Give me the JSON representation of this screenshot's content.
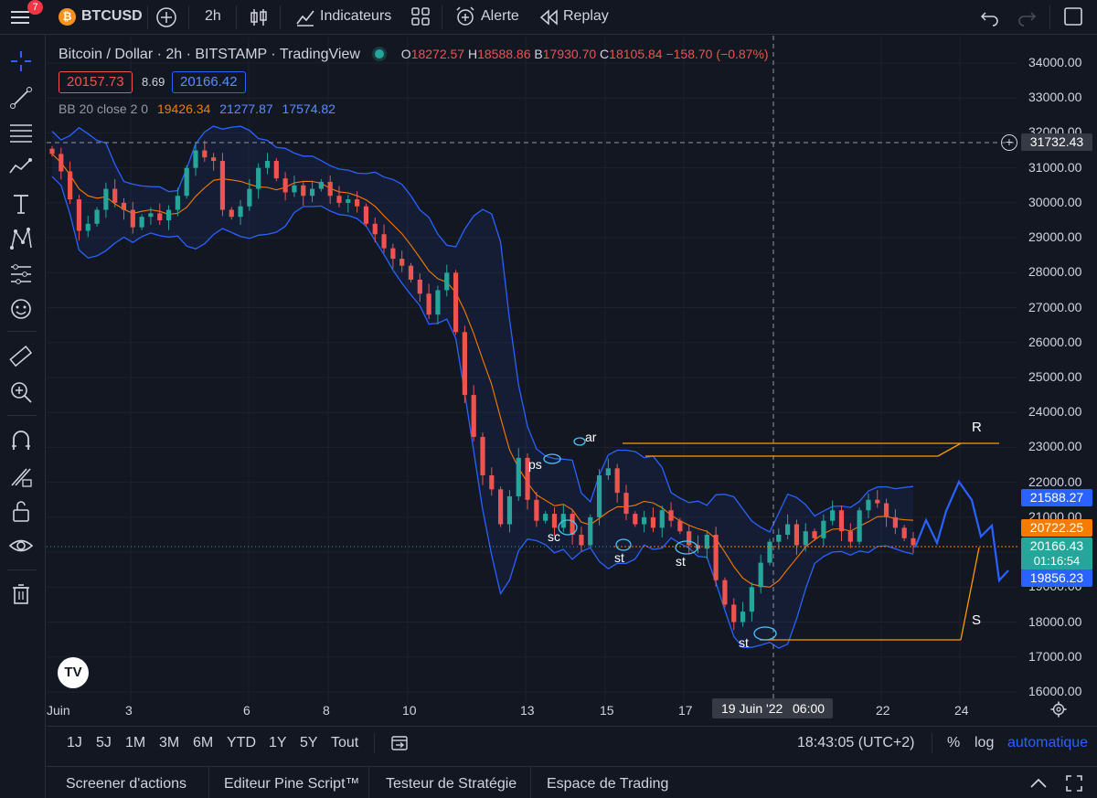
{
  "toolbar": {
    "menu_badge": "7",
    "symbol": "BTCUSD",
    "interval": "2h",
    "indicators_label": "Indicateurs",
    "alert_label": "Alerte",
    "replay_label": "Replay"
  },
  "legend": {
    "title": "Bitcoin / Dollar · 2h · BITSTAMP · TradingView",
    "open_label": "O",
    "open": "18272.57",
    "high_label": "H",
    "high": "18588.86",
    "low_label": "B",
    "low": "17930.70",
    "close_label": "C",
    "close": "18105.84",
    "change": "−158.70 (−0.87%)",
    "sell_price": "20157.73",
    "spread": "8.69",
    "buy_price": "20166.42",
    "bb_label": "BB 20 close 2 0",
    "bb_basis": "19426.34",
    "bb_upper": "21277.87",
    "bb_lower": "17574.82"
  },
  "price_axis": {
    "ticks": [
      "34000.00",
      "33000.00",
      "32000.00",
      "31000.00",
      "30000.00",
      "29000.00",
      "28000.00",
      "27000.00",
      "26000.00",
      "25000.00",
      "24000.00",
      "23000.00",
      "22000.00",
      "21000.00",
      "20000.00",
      "19000.00",
      "18000.00",
      "17000.00",
      "16000.00"
    ],
    "crosshair_price": "31732.43",
    "upper_band_price": "21588.27",
    "basis_price": "20722.25",
    "last_price": "20166.43",
    "countdown": "01:16:54",
    "lower_band_price": "19856.23"
  },
  "time_axis": {
    "ticks": [
      "Juin",
      "3",
      "6",
      "8",
      "10",
      "13",
      "15",
      "17",
      "22",
      "24"
    ],
    "crosshair_time": "19 Juin '22",
    "crosshair_hour": "06:00"
  },
  "annotations": {
    "ps": "ps",
    "ar": "ar",
    "sc": "sc",
    "st1": "st",
    "st2": "st",
    "st3": "st",
    "R": "R",
    "S": "S"
  },
  "timeframes": {
    "items": [
      "1J",
      "5J",
      "1M",
      "3M",
      "6M",
      "YTD",
      "1Y",
      "5Y",
      "Tout"
    ],
    "clock": "18:43:05 (UTC+2)",
    "percent": "%",
    "log": "log",
    "auto": "automatique"
  },
  "bottom_tabs": [
    "Screener d'actions",
    "Editeur Pine Script™",
    "Testeur de Stratégie",
    "Espace de Trading"
  ],
  "colors": {
    "bull": "#26a69a",
    "bear": "#ef5350",
    "band": "#2962ff",
    "basis": "#f57c00",
    "accent": "#2962ff"
  },
  "chart_data": {
    "type": "candlestick",
    "title": "Bitcoin / Dollar · 2h · BITSTAMP · TradingView",
    "ylim": [
      16000,
      34000
    ],
    "series": [
      {
        "name": "BB 20 close 2 0",
        "values": [
          "19426.34",
          "21277.87",
          "17574.82"
        ]
      }
    ],
    "closes_approx": [
      31400,
      30900,
      30100,
      29200,
      29400,
      29800,
      30400,
      30000,
      29800,
      29300,
      29600,
      29700,
      29500,
      29800,
      30200,
      31000,
      31500,
      31300,
      31200,
      29800,
      29600,
      29900,
      30400,
      31000,
      31200,
      30700,
      30300,
      30500,
      30200,
      30400,
      30600,
      30200,
      30000,
      30100,
      29900,
      29400,
      29100,
      28700,
      28400,
      28200,
      27800,
      27400,
      26800,
      27500,
      28000,
      26300,
      24500,
      23300,
      22200,
      21800,
      20800,
      21600,
      22700,
      21500,
      20900,
      21100,
      20700,
      21100,
      20500,
      20200,
      21000,
      22200,
      22400,
      21700,
      21100,
      20800,
      21000,
      20700,
      21200,
      20900,
      20600,
      20200,
      20100,
      20500,
      19200,
      18500,
      18000,
      18300,
      19000,
      19700,
      20300,
      20500,
      20800,
      20200,
      20600,
      20400,
      20900,
      21200,
      20600,
      20300,
      21200,
      21500,
      21400,
      21000,
      20700,
      20400,
      20200
    ]
  }
}
